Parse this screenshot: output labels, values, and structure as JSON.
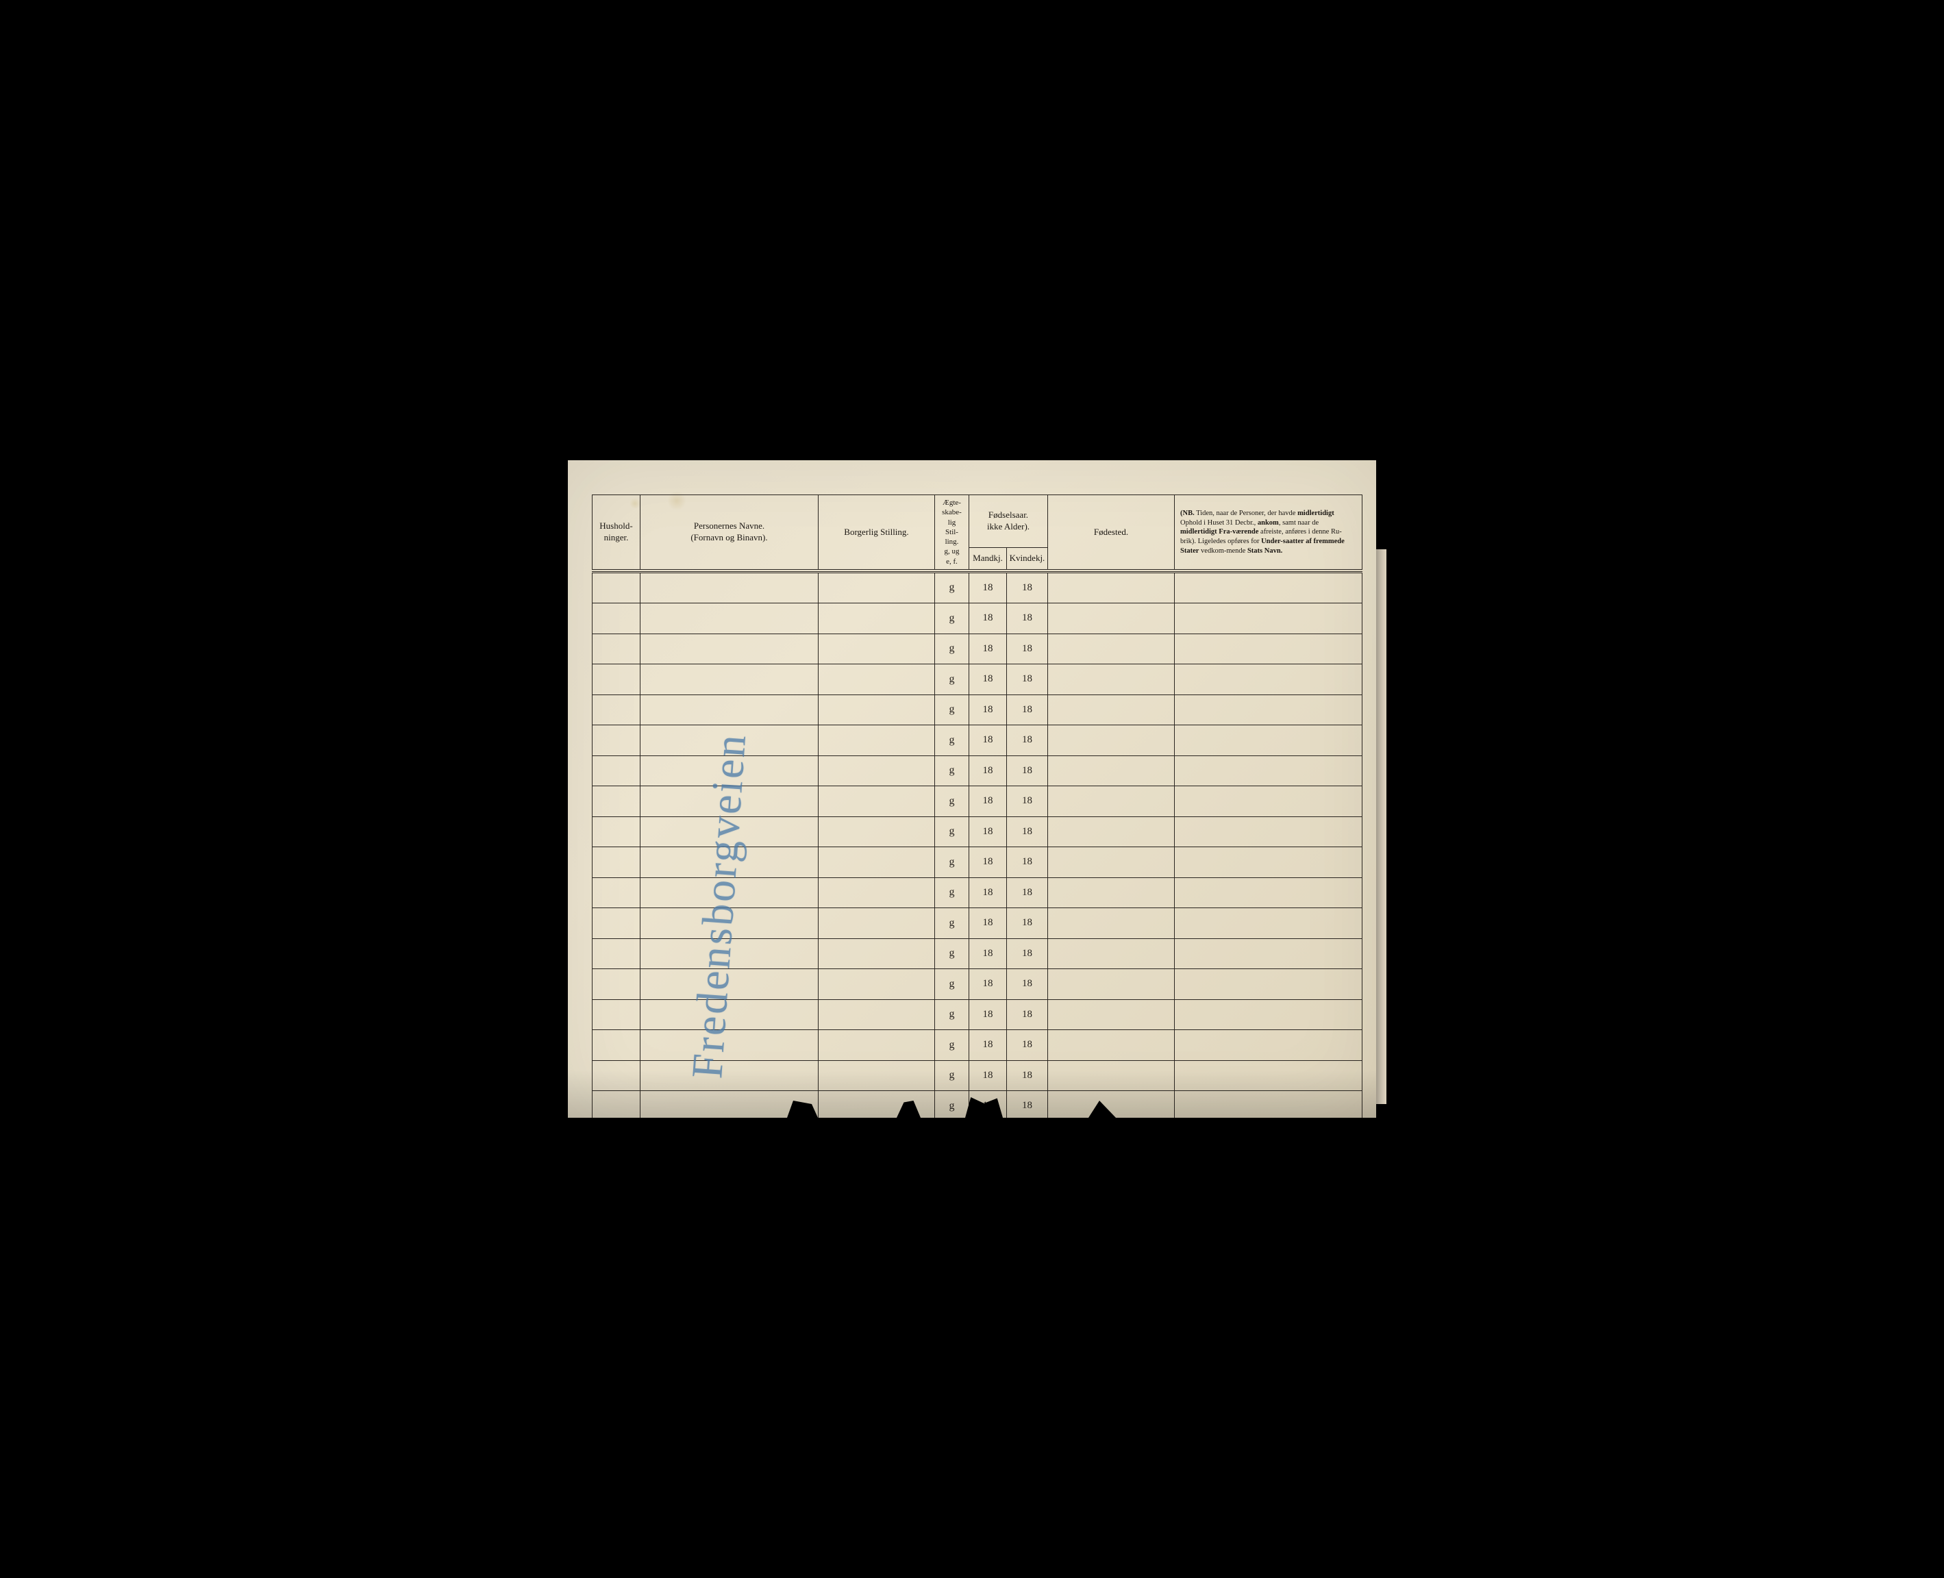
{
  "headers": {
    "hushold": "Hushold-\nninger.",
    "navne_line1": "Personernes Navne.",
    "navne_line2": "(Fornavn og Binavn).",
    "stilling": "Borgerlig Stilling.",
    "egte": "Ægte-\nskabe-\nlig\nStil-\nling.\ng, ug\ne, f.",
    "fodselsaar_top": "Fødselsaar.",
    "fodselsaar_sub": "ikke Alder).",
    "mandkj": "Mandkj.",
    "kvindekj": "Kvindekj.",
    "fodested": "Fødested.",
    "nb_prefix": "(NB.",
    "nb_text_1": " Tiden, naar de Personer, der havde ",
    "nb_em1": "midlertidigt",
    "nb_text_2": " Ophold i Huset 31 Decbr., ",
    "nb_em2": "ankom",
    "nb_text_3": ", samt naar de ",
    "nb_em3": "midlertidigt Fra-værende",
    "nb_text_4": " afreiste, anføres i denne Ru-brik).   Ligeledes opføres for ",
    "nb_em4": "Under-saatter af fremmede Stater",
    "nb_text_5": " vedkom-mende ",
    "nb_em5": "Stats Navn."
  },
  "handwriting": "Fredensborgveien",
  "row_defaults": {
    "egte": "g",
    "mandkj": "18",
    "kvindekj": "18"
  },
  "row_count": 18,
  "colors": {
    "ink": "#2a2520",
    "paper_light": "#ede5d0",
    "paper_dark": "#e0d6bd",
    "pencil_blue": "#4a7aa8"
  }
}
